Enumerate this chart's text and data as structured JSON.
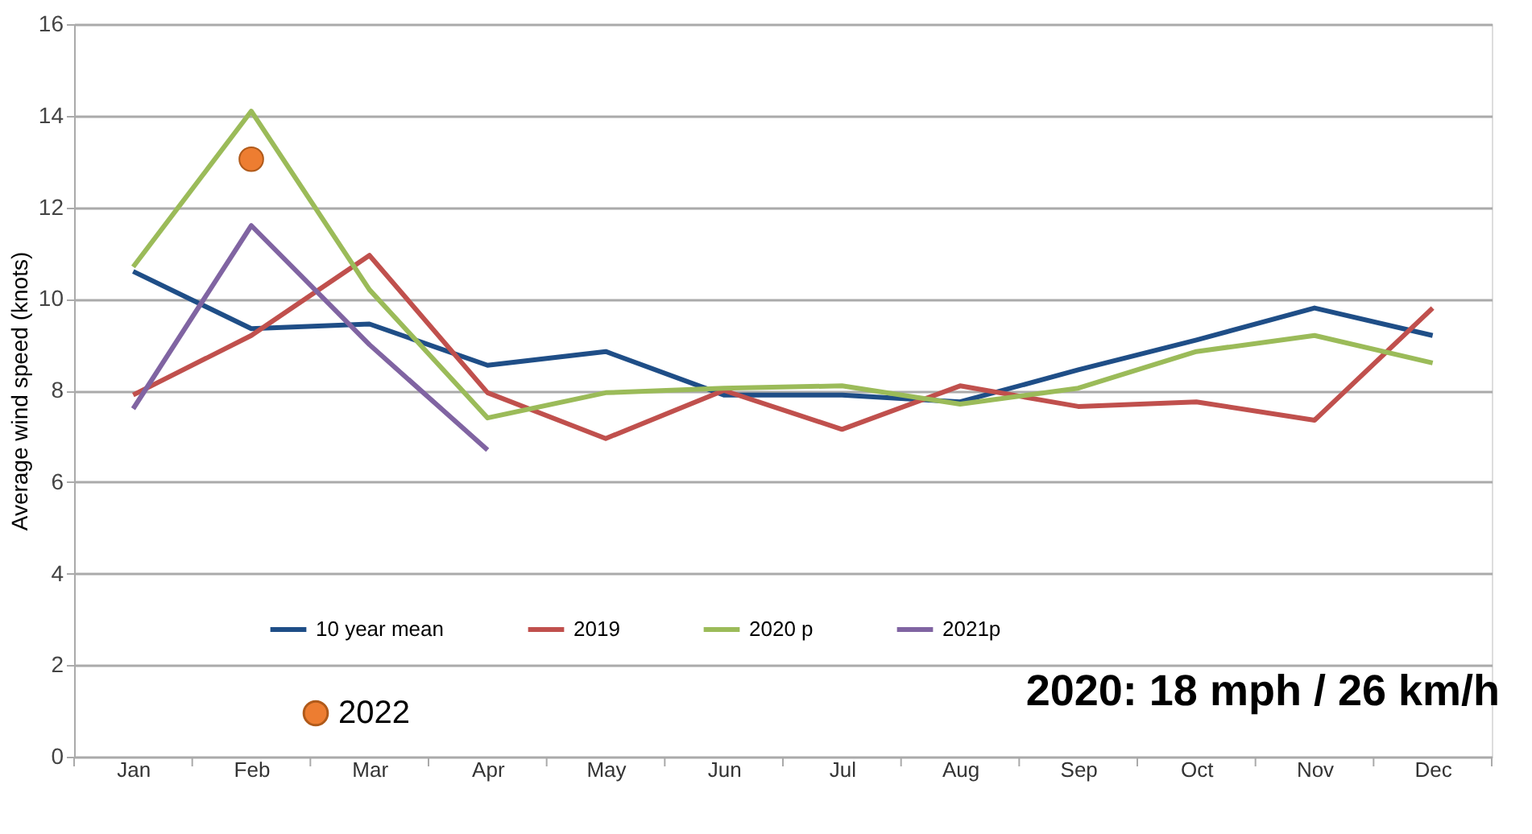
{
  "chart_data": {
    "type": "line",
    "ylabel": "Average wind speed (knots)",
    "categories": [
      "Jan",
      "Feb",
      "Mar",
      "Apr",
      "May",
      "Jun",
      "Jul",
      "Aug",
      "Sep",
      "Oct",
      "Nov",
      "Dec"
    ],
    "series": [
      {
        "name": "10 year mean",
        "color": "#1f4e87",
        "values": [
          10.6,
          9.35,
          9.45,
          8.55,
          8.85,
          7.9,
          7.9,
          7.75,
          8.45,
          9.1,
          9.8,
          9.2
        ]
      },
      {
        "name": "2019",
        "color": "#c0504d",
        "values": [
          7.9,
          9.2,
          10.95,
          7.95,
          6.95,
          8.0,
          7.15,
          8.1,
          7.65,
          7.75,
          7.35,
          9.8
        ]
      },
      {
        "name": "2020 p",
        "color": "#9bbb59",
        "values": [
          10.7,
          14.1,
          10.2,
          7.4,
          7.95,
          8.05,
          8.1,
          7.7,
          8.05,
          8.85,
          9.2,
          8.6
        ]
      },
      {
        "name": "2021p",
        "color": "#8064a2",
        "values": [
          7.6,
          11.6,
          9.0,
          6.7,
          null,
          null,
          null,
          null,
          null,
          null,
          null,
          null
        ]
      },
      {
        "name": "2022",
        "color": "#ed7d31",
        "type": "scatter",
        "marker": "circle",
        "values": [
          null,
          13.05,
          null,
          null,
          null,
          null,
          null,
          null,
          null,
          null,
          null,
          null
        ]
      }
    ],
    "ylim": [
      0,
      16
    ],
    "yticks": [
      0,
      2,
      4,
      6,
      8,
      10,
      12,
      14,
      16
    ],
    "grid": "y",
    "legend": "bottom",
    "annotations": [
      "2020: 18 mph / 26 km/h"
    ]
  }
}
